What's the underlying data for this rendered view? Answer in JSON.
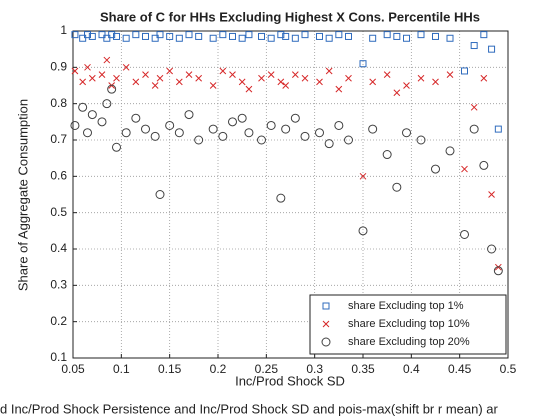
{
  "chart_data": {
    "type": "scatter",
    "title": "Share of C for HHs Excluding Highest X Cons. Percentile HHs",
    "xlabel": "Inc/Prod Shock SD",
    "ylabel": "Share of Aggregate Consumption",
    "caption": "d Inc/Prod Shock Persistence and Inc/Prod Shock SD and pois-max(shift br r mean) ar",
    "x": [
      0.052,
      0.06,
      0.065,
      0.07,
      0.08,
      0.085,
      0.09,
      0.095,
      0.105,
      0.115,
      0.125,
      0.135,
      0.14,
      0.15,
      0.16,
      0.17,
      0.18,
      0.195,
      0.205,
      0.215,
      0.225,
      0.232,
      0.245,
      0.255,
      0.265,
      0.27,
      0.28,
      0.29,
      0.305,
      0.315,
      0.325,
      0.335,
      0.35,
      0.36,
      0.375,
      0.385,
      0.395,
      0.41,
      0.425,
      0.44,
      0.455,
      0.465,
      0.475,
      0.483,
      0.49
    ],
    "series": [
      {
        "name": "share Excluding top 1%",
        "color": "#2f6bbd",
        "marker": "square",
        "values": [
          0.99,
          0.98,
          0.99,
          0.985,
          0.99,
          0.98,
          0.99,
          0.985,
          0.98,
          0.99,
          0.985,
          0.98,
          0.99,
          0.985,
          0.98,
          0.99,
          0.985,
          0.98,
          0.99,
          0.985,
          0.98,
          0.99,
          0.985,
          0.98,
          0.99,
          0.985,
          0.98,
          0.99,
          0.985,
          0.98,
          0.99,
          0.985,
          0.91,
          0.98,
          0.99,
          0.985,
          0.98,
          0.99,
          0.985,
          0.98,
          0.89,
          0.96,
          0.99,
          0.95,
          0.73
        ]
      },
      {
        "name": "share Excluding top 10%",
        "color": "#d62728",
        "marker": "x",
        "values": [
          0.89,
          0.86,
          0.9,
          0.87,
          0.88,
          0.92,
          0.85,
          0.87,
          0.9,
          0.86,
          0.88,
          0.85,
          0.87,
          0.89,
          0.86,
          0.88,
          0.87,
          0.85,
          0.89,
          0.88,
          0.86,
          0.84,
          0.87,
          0.88,
          0.86,
          0.85,
          0.88,
          0.87,
          0.86,
          0.89,
          0.84,
          0.87,
          0.6,
          0.86,
          0.88,
          0.83,
          0.85,
          0.87,
          0.86,
          0.88,
          0.62,
          0.79,
          0.87,
          0.55,
          0.35
        ]
      },
      {
        "name": "share Excluding top 20%",
        "color": "#404040",
        "marker": "circle",
        "values": [
          0.74,
          0.79,
          0.72,
          0.77,
          0.75,
          0.8,
          0.84,
          0.68,
          0.72,
          0.76,
          0.73,
          0.71,
          0.55,
          0.74,
          0.72,
          0.77,
          0.7,
          0.73,
          0.71,
          0.75,
          0.76,
          0.72,
          0.7,
          0.74,
          0.54,
          0.73,
          0.76,
          0.71,
          0.72,
          0.69,
          0.74,
          0.7,
          0.45,
          0.73,
          0.66,
          0.57,
          0.72,
          0.7,
          0.62,
          0.67,
          0.44,
          0.73,
          0.63,
          0.4,
          0.34
        ]
      }
    ],
    "xlim": [
      0.05,
      0.5
    ],
    "ylim": [
      0.1,
      1
    ],
    "xticks": [
      0.05,
      0.1,
      0.15,
      0.2,
      0.25,
      0.3,
      0.35,
      0.4,
      0.45,
      0.5
    ],
    "yticks": [
      0.1,
      0.2,
      0.3,
      0.4,
      0.5,
      0.6,
      0.7,
      0.8,
      0.9,
      1
    ],
    "grid": true,
    "legend": "lower right"
  }
}
